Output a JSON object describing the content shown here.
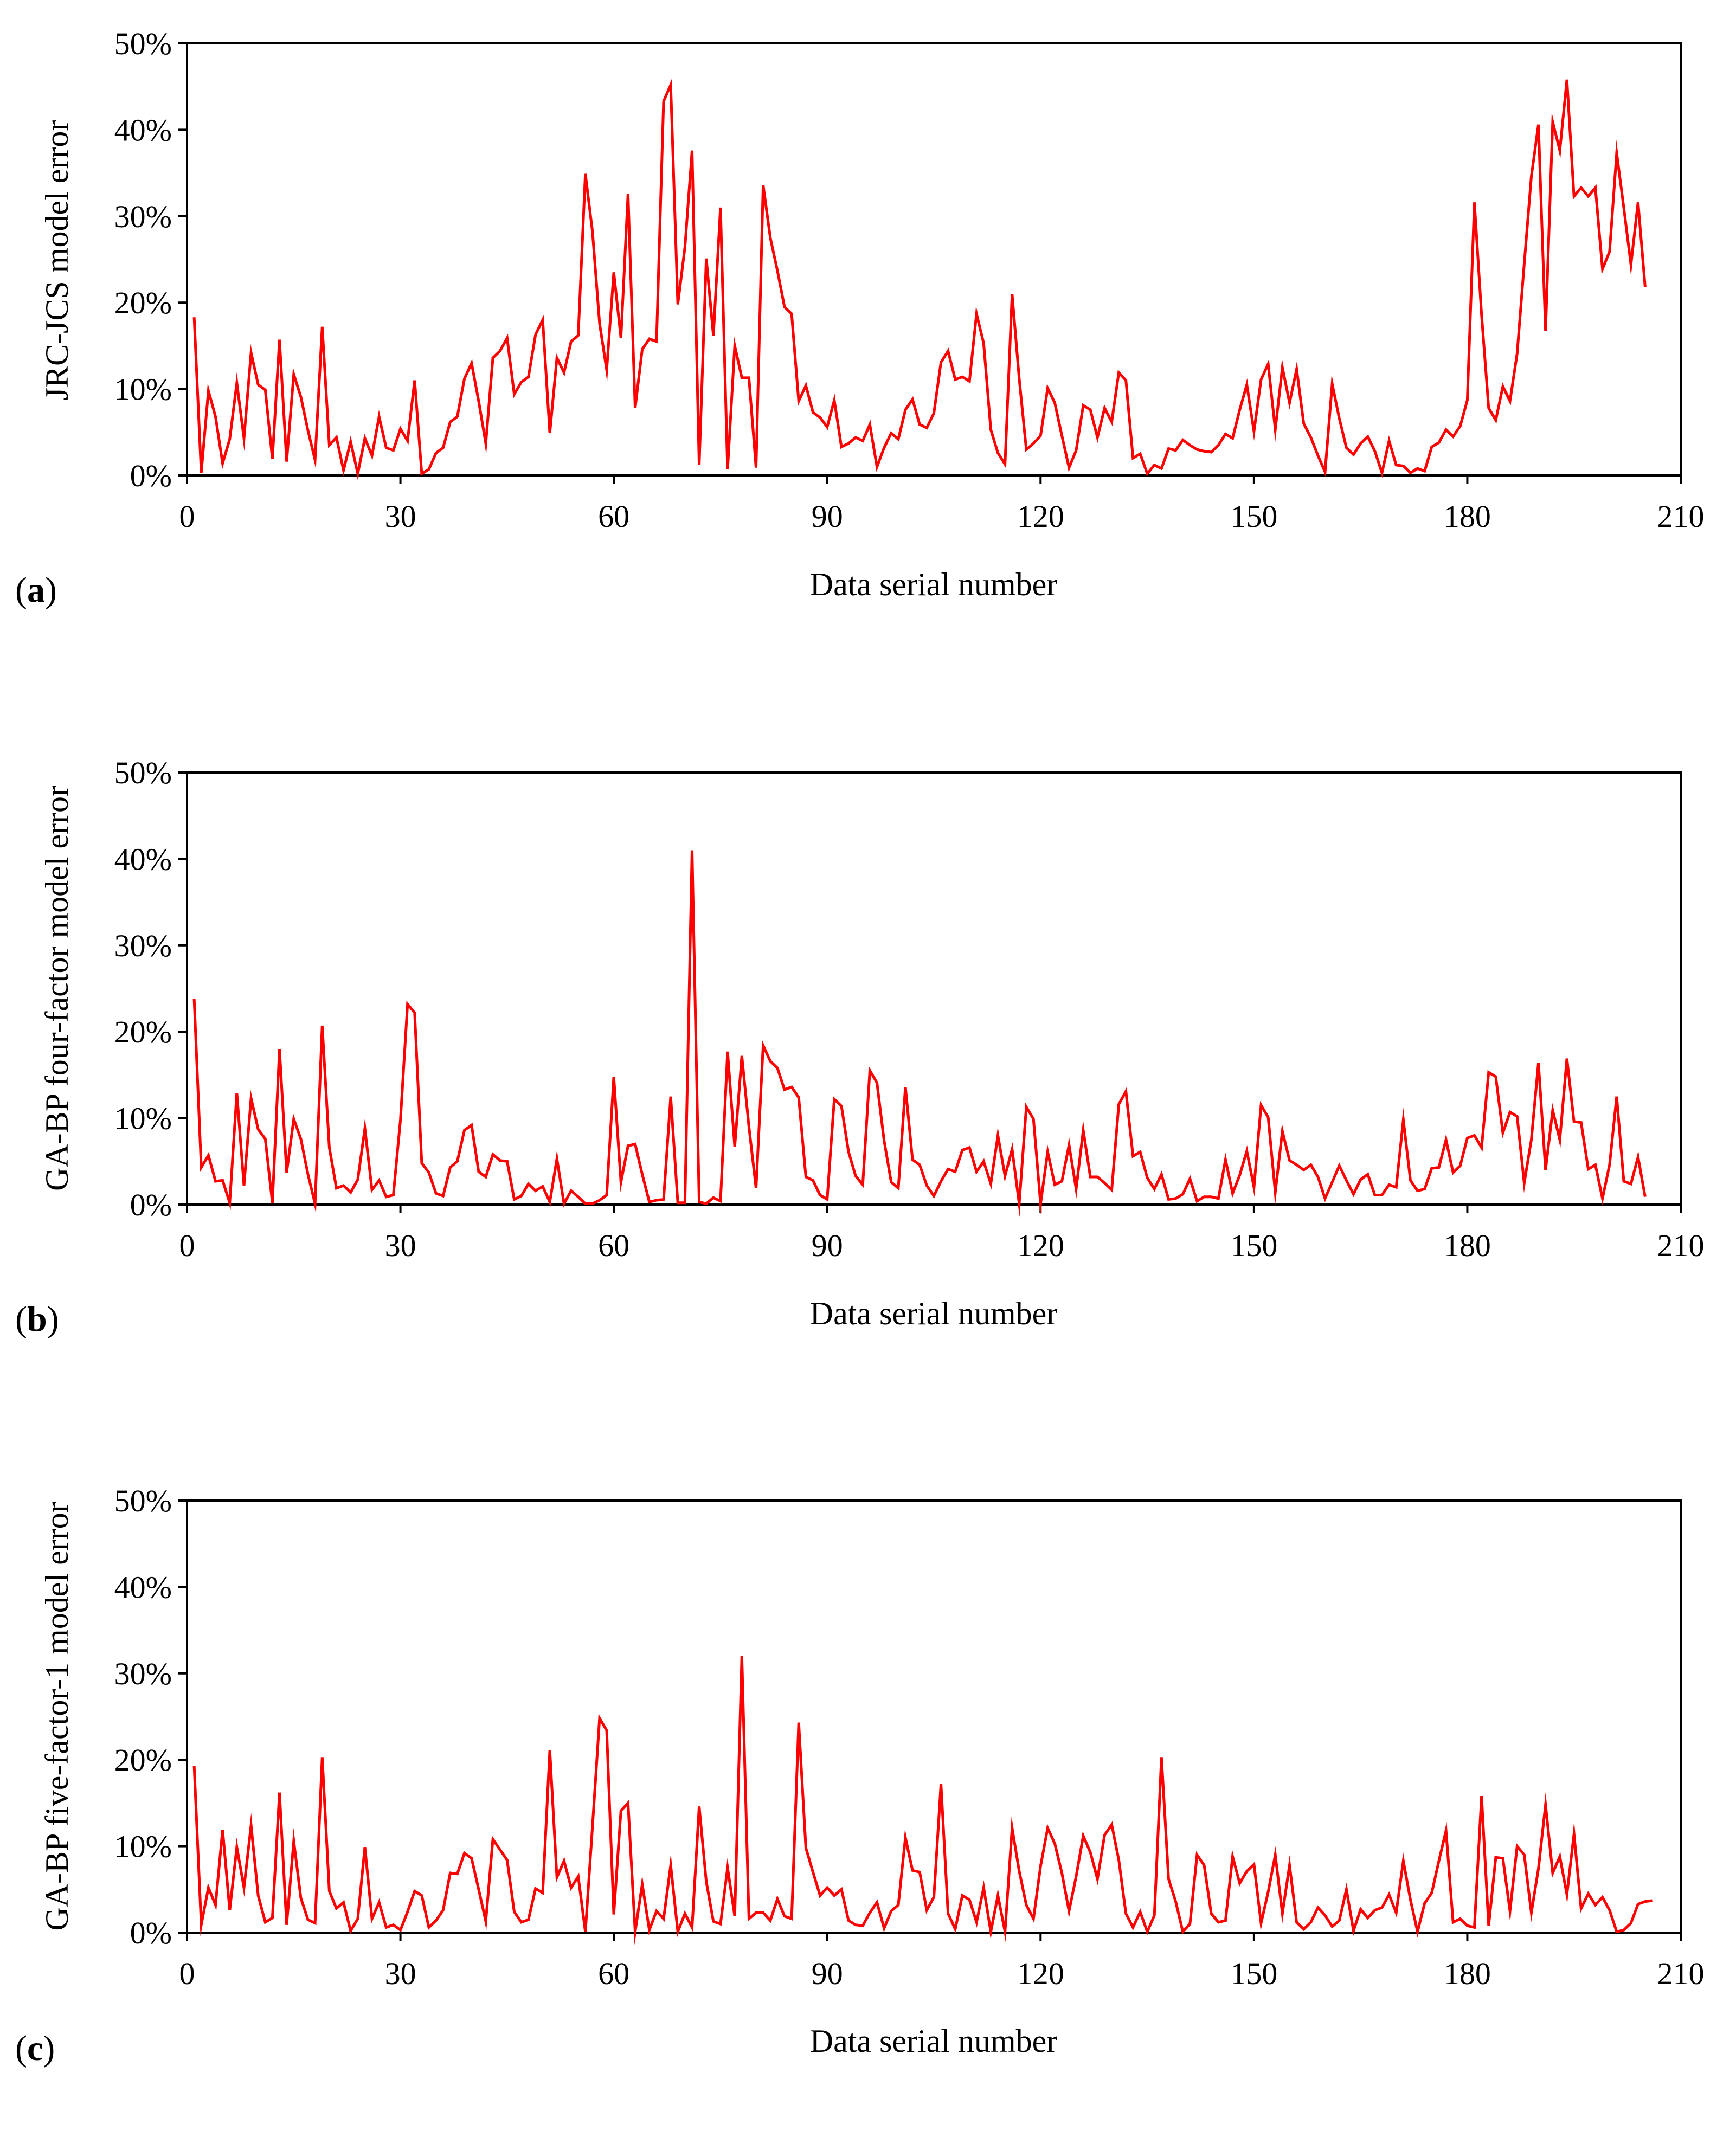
{
  "figure": {
    "panel_labels": [
      "a",
      "b",
      "c"
    ],
    "line_color": "#ff0000"
  },
  "chart_data": [
    {
      "type": "line",
      "panel": "a",
      "title": "",
      "xlabel": "Data serial number",
      "ylabel": "JRC-JCS model  error",
      "xlim": [
        0,
        210
      ],
      "ylim": [
        0,
        50
      ],
      "xticks": [
        0,
        30,
        60,
        90,
        120,
        150,
        180,
        210
      ],
      "xtick_labels": [
        "0",
        "30",
        "60",
        "90",
        "120",
        "150",
        "180",
        "210"
      ],
      "yticks": [
        0,
        10,
        20,
        30,
        40,
        50
      ],
      "ytick_labels": [
        "0%",
        "10%",
        "20%",
        "30%",
        "40%",
        "50%"
      ],
      "series": [
        {
          "name": "JRC-JCS model error",
          "values": [
            18.3,
            0.3,
            9.8,
            6.8,
            1.4,
            4.2,
            10.7,
            4.3,
            14.2,
            10.5,
            9.9,
            1.9,
            15.7,
            1.6,
            11.7,
            9.1,
            5.2,
            1.8,
            17.2,
            3.5,
            4.4,
            0.6,
            3.9,
            0.2,
            4.3,
            2.3,
            6.8,
            3.2,
            2.9,
            5.4,
            4.0,
            11.0,
            0.2,
            0.7,
            2.6,
            3.2,
            6.2,
            6.8,
            11.2,
            13.0,
            8.6,
            3.7,
            13.6,
            14.4,
            15.9,
            9.4,
            10.8,
            11.4,
            16.3,
            18.0,
            4.9,
            13.6,
            11.9,
            15.5,
            16.2,
            34.9,
            28.2,
            17.6,
            12.2,
            23.5,
            15.9,
            32.6,
            7.8,
            14.6,
            15.8,
            15.5,
            43.3,
            45.2,
            19.8,
            26.4,
            37.6,
            1.2,
            25.1,
            16.2,
            31.0,
            0.7,
            15.0,
            11.3,
            11.3,
            0.9,
            33.6,
            27.5,
            23.7,
            19.5,
            18.7,
            8.6,
            10.4,
            7.3,
            6.7,
            5.6,
            8.7,
            3.3,
            3.7,
            4.4,
            4.0,
            5.9,
            1.0,
            3.2,
            4.9,
            4.2,
            7.6,
            8.8,
            5.9,
            5.5,
            7.2,
            13.1,
            14.4,
            11.1,
            11.4,
            10.9,
            18.7,
            15.3,
            5.3,
            2.6,
            1.3,
            21.0,
            11.2,
            3.0,
            3.7,
            4.6,
            10.1,
            8.4,
            4.6,
            0.9,
            2.9,
            8.1,
            7.6,
            4.4,
            7.8,
            6.2,
            11.9,
            11.0,
            2.0,
            2.5,
            0.2,
            1.2,
            0.8,
            3.1,
            2.9,
            4.1,
            3.5,
            3.0,
            2.8,
            2.7,
            3.5,
            4.8,
            4.3,
            7.6,
            10.5,
            5.1,
            11.1,
            12.9,
            5.3,
            12.5,
            8.4,
            12.3,
            6.0,
            4.4,
            2.3,
            0.4,
            10.6,
            6.6,
            3.2,
            2.4,
            3.7,
            4.5,
            2.8,
            0.3,
            4.0,
            1.2,
            1.1,
            0.3,
            0.8,
            0.5,
            3.3,
            3.8,
            5.3,
            4.5,
            5.7,
            8.7,
            31.6,
            18.6,
            7.8,
            6.4,
            10.3,
            8.6,
            14.1,
            24.5,
            34.6,
            40.6,
            16.7,
            40.9,
            37.6,
            45.8,
            32.3,
            33.3,
            32.3,
            33.3,
            23.9,
            25.9,
            37.3,
            31.0,
            24.4,
            31.6,
            21.8
          ]
        }
      ]
    },
    {
      "type": "line",
      "panel": "b",
      "title": "",
      "xlabel": "Data serial number",
      "ylabel": "GA-BP four-factor model error",
      "xlim": [
        0,
        210
      ],
      "ylim": [
        0,
        50
      ],
      "xticks": [
        0,
        30,
        60,
        90,
        120,
        150,
        180,
        210
      ],
      "xtick_labels": [
        "0",
        "30",
        "60",
        "90",
        "120",
        "150",
        "180",
        "210"
      ],
      "yticks": [
        0,
        10,
        20,
        30,
        40,
        50
      ],
      "ytick_labels": [
        "0%",
        "10%",
        "20%",
        "30%",
        "40%",
        "50%"
      ],
      "series": [
        {
          "name": "GA-BP four-factor model error",
          "values": [
            23.8,
            4.3,
            5.7,
            2.7,
            2.8,
            0.2,
            12.9,
            2.2,
            12.3,
            8.7,
            7.6,
            0.2,
            18.0,
            3.7,
            9.9,
            7.6,
            3.5,
            0.1,
            20.7,
            6.6,
            1.9,
            2.2,
            1.4,
            2.9,
            8.8,
            1.7,
            2.8,
            0.9,
            1.1,
            9.8,
            23.2,
            22.2,
            4.8,
            3.7,
            1.3,
            1.0,
            4.3,
            5.0,
            8.6,
            9.2,
            3.8,
            3.2,
            5.8,
            5.1,
            5.0,
            0.6,
            1.0,
            2.4,
            1.6,
            2.1,
            0.3,
            5.3,
            0.1,
            1.6,
            0.9,
            0.1,
            0.1,
            0.5,
            1.1,
            14.8,
            2.6,
            6.8,
            7.0,
            3.5,
            0.3,
            0.5,
            0.6,
            12.5,
            0.2,
            0.2,
            41.0,
            0.3,
            0.1,
            0.8,
            0.4,
            17.7,
            6.7,
            17.2,
            9.0,
            1.9,
            18.4,
            16.6,
            15.8,
            13.3,
            13.6,
            12.4,
            3.2,
            2.8,
            1.1,
            0.6,
            12.2,
            11.4,
            6.1,
            3.3,
            2.3,
            15.5,
            14.1,
            7.4,
            2.6,
            1.9,
            13.6,
            5.2,
            4.6,
            2.2,
            1.0,
            2.7,
            4.1,
            3.8,
            6.3,
            6.6,
            3.8,
            5.0,
            2.4,
            8.0,
            3.3,
            6.4,
            0.1,
            11.3,
            9.9,
            0.1,
            6.1,
            2.3,
            2.7,
            6.9,
            1.8,
            8.6,
            3.2,
            3.2,
            2.5,
            1.7,
            11.6,
            13.1,
            5.6,
            6.1,
            3.1,
            1.8,
            3.5,
            0.6,
            0.7,
            1.2,
            3.0,
            0.4,
            0.9,
            0.9,
            0.7,
            5.2,
            1.3,
            3.4,
            6.2,
            2.0,
            11.5,
            10.1,
            1.4,
            8.5,
            5.1,
            4.6,
            4.0,
            4.6,
            3.2,
            0.7,
            2.6,
            4.5,
            2.8,
            1.2,
            2.9,
            3.5,
            1.1,
            1.1,
            2.3,
            2.0,
            9.8,
            2.8,
            1.6,
            1.8,
            4.2,
            4.3,
            7.5,
            3.7,
            4.5,
            7.7,
            8.0,
            6.6,
            15.3,
            14.8,
            8.3,
            10.7,
            10.2,
            2.5,
            7.5,
            16.4,
            4.0,
            10.9,
            7.5,
            16.9,
            9.6,
            9.5,
            4.1,
            4.6,
            0.7,
            4.6,
            12.5,
            2.7,
            2.4,
            5.5,
            0.9
          ]
        }
      ]
    },
    {
      "type": "line",
      "panel": "c",
      "title": "",
      "xlabel": "Data serial number",
      "ylabel": "GA-BP five-factor-1 model error",
      "xlim": [
        0,
        210
      ],
      "ylim": [
        0,
        50
      ],
      "xticks": [
        0,
        30,
        60,
        90,
        120,
        150,
        180,
        210
      ],
      "xtick_labels": [
        "0",
        "30",
        "60",
        "90",
        "120",
        "150",
        "180",
        "210"
      ],
      "yticks": [
        0,
        10,
        20,
        30,
        40,
        50
      ],
      "ytick_labels": [
        "0%",
        "10%",
        "20%",
        "30%",
        "40%",
        "50%"
      ],
      "series": [
        {
          "name": "GA-BP five-factor-1 model error",
          "values": [
            19.3,
            0.9,
            5.2,
            3.2,
            11.9,
            2.6,
            9.9,
            5.2,
            12.4,
            4.3,
            1.2,
            1.7,
            16.2,
            0.9,
            10.6,
            4.0,
            1.5,
            1.1,
            20.3,
            4.8,
            2.8,
            3.5,
            0.2,
            1.6,
            9.9,
            1.6,
            3.5,
            0.6,
            0.9,
            0.3,
            2.4,
            4.8,
            4.3,
            0.6,
            1.4,
            2.6,
            6.9,
            6.8,
            9.2,
            8.6,
            5.0,
            1.3,
            10.8,
            9.6,
            8.4,
            2.4,
            1.2,
            1.5,
            5.1,
            4.6,
            21.1,
            6.4,
            8.3,
            5.2,
            6.5,
            0.1,
            12.3,
            24.8,
            23.4,
            2.1,
            14.1,
            15.0,
            0.1,
            5.6,
            0.3,
            2.5,
            1.6,
            7.8,
            0.1,
            2.2,
            0.6,
            14.6,
            5.9,
            1.3,
            1.0,
            7.5,
            1.9,
            32.0,
            1.6,
            2.3,
            2.3,
            1.4,
            3.9,
            1.9,
            1.6,
            24.3,
            9.8,
            7.0,
            4.3,
            5.2,
            4.3,
            5.0,
            1.4,
            0.9,
            0.8,
            2.3,
            3.5,
            0.5,
            2.5,
            3.2,
            11.0,
            7.2,
            7.0,
            2.6,
            4.1,
            17.2,
            2.2,
            0.4,
            4.3,
            3.8,
            1.2,
            5.2,
            0.1,
            4.3,
            0.1,
            12.1,
            7.1,
            3.2,
            1.6,
            7.7,
            12.1,
            10.3,
            6.9,
            2.5,
            6.5,
            11.2,
            9.3,
            6.2,
            11.3,
            12.5,
            8.4,
            2.2,
            0.6,
            2.4,
            0.1,
            2.0,
            20.3,
            6.2,
            3.6,
            0.1,
            1.0,
            9.0,
            7.8,
            2.2,
            1.2,
            1.4,
            8.8,
            5.7,
            7.1,
            7.9,
            1.1,
            4.7,
            9.0,
            2.2,
            7.8,
            1.2,
            0.4,
            1.2,
            2.9,
            2.0,
            0.7,
            1.4,
            5.0,
            0.2,
            2.7,
            1.7,
            2.6,
            2.9,
            4.4,
            2.3,
            8.3,
            3.8,
            0.1,
            3.4,
            4.6,
            8.3,
            11.8,
            1.2,
            1.6,
            0.8,
            0.6,
            15.8,
            0.8,
            8.7,
            8.6,
            2.5,
            10.0,
            9.0,
            2.3,
            7.4,
            14.8,
            6.9,
            8.8,
            4.4,
            11.4,
            2.8,
            4.5,
            3.2,
            4.1,
            2.6,
            0.1,
            0.3,
            1.1,
            3.3,
            3.6,
            3.7
          ]
        }
      ]
    }
  ]
}
